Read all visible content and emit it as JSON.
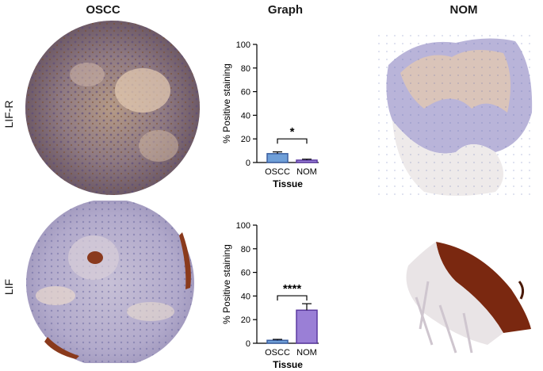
{
  "headers": {
    "left": "OSCC",
    "middle": "Graph",
    "right": "NOM"
  },
  "row_labels": {
    "top": "LIF-R",
    "bottom": "LIF"
  },
  "chart_data": [
    {
      "type": "bar",
      "categories": [
        "OSCC",
        "NOM"
      ],
      "values": [
        7.5,
        2.0
      ],
      "errors": [
        1.5,
        0.8
      ],
      "ylabel": "% Positive staining",
      "xlabel": "Tissue",
      "ylim": [
        0,
        100
      ],
      "yticks": [
        "0",
        "20",
        "40",
        "60",
        "80",
        "100"
      ],
      "significance": "*",
      "colors": [
        "#6f9fd8",
        "#9a7fd6"
      ]
    },
    {
      "type": "bar",
      "categories": [
        "OSCC",
        "NOM"
      ],
      "values": [
        2.5,
        28.0
      ],
      "errors": [
        0.8,
        5.5
      ],
      "ylabel": "% Positive staining",
      "xlabel": "Tissue",
      "ylim": [
        0,
        100
      ],
      "yticks": [
        "0",
        "20",
        "40",
        "60",
        "80",
        "100"
      ],
      "significance": "****",
      "colors": [
        "#6f9fd8",
        "#9a7fd6"
      ]
    }
  ]
}
